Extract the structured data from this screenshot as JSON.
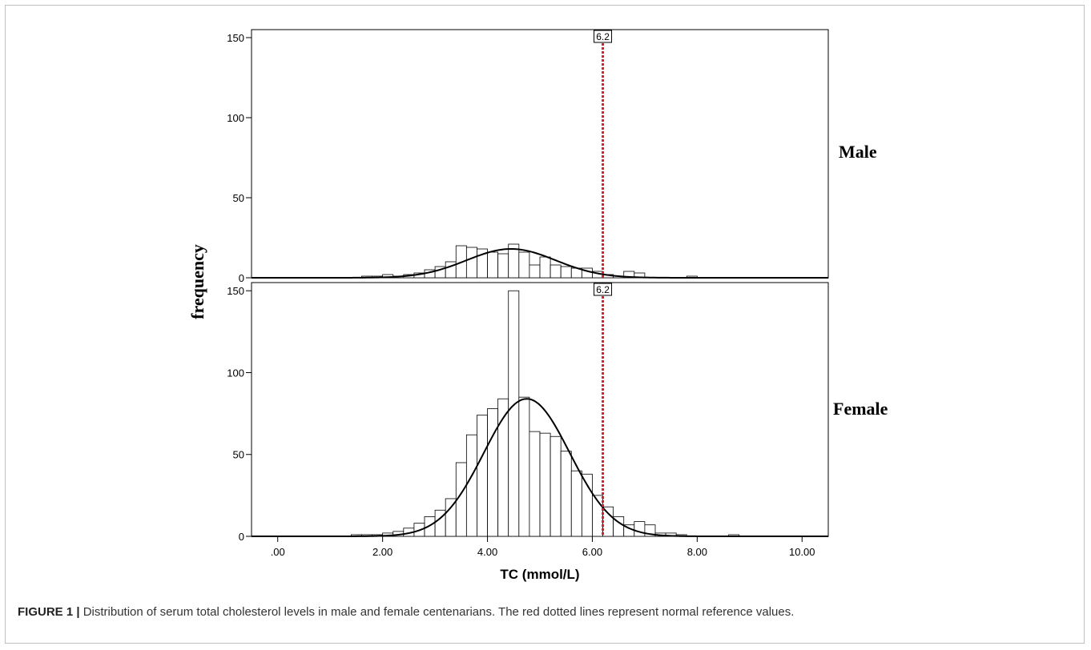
{
  "chart_data": {
    "type": "bar",
    "subtype": "histogram-panels",
    "xlabel": "TC (mmol/L)",
    "ylabel": "frequency",
    "x_ticks": [
      ".00",
      "2.00",
      "4.00",
      "6.00",
      "8.00",
      "10.00"
    ],
    "xlim": [
      -0.5,
      10.5
    ],
    "ylim": [
      0,
      155
    ],
    "y_ticks": [
      "0",
      "50",
      "100",
      "150"
    ],
    "bin_width": 0.2,
    "reference_line": {
      "x": 6.2,
      "label": "6.2",
      "color": "#d0202a",
      "style": "dotted"
    },
    "panels": [
      {
        "name": "Male",
        "bins": [
          {
            "x": 1.6,
            "v": 1
          },
          {
            "x": 1.8,
            "v": 1
          },
          {
            "x": 2.0,
            "v": 2
          },
          {
            "x": 2.2,
            "v": 1
          },
          {
            "x": 2.4,
            "v": 2
          },
          {
            "x": 2.6,
            "v": 3
          },
          {
            "x": 2.8,
            "v": 5
          },
          {
            "x": 3.0,
            "v": 7
          },
          {
            "x": 3.2,
            "v": 10
          },
          {
            "x": 3.4,
            "v": 20
          },
          {
            "x": 3.6,
            "v": 19
          },
          {
            "x": 3.8,
            "v": 18
          },
          {
            "x": 4.0,
            "v": 16
          },
          {
            "x": 4.2,
            "v": 15
          },
          {
            "x": 4.4,
            "v": 21
          },
          {
            "x": 4.6,
            "v": 16
          },
          {
            "x": 4.8,
            "v": 8
          },
          {
            "x": 5.0,
            "v": 13
          },
          {
            "x": 5.2,
            "v": 8
          },
          {
            "x": 5.4,
            "v": 7
          },
          {
            "x": 5.6,
            "v": 6
          },
          {
            "x": 5.8,
            "v": 6
          },
          {
            "x": 6.0,
            "v": 4
          },
          {
            "x": 6.2,
            "v": 2
          },
          {
            "x": 6.4,
            "v": 1
          },
          {
            "x": 6.6,
            "v": 4
          },
          {
            "x": 6.8,
            "v": 3
          },
          {
            "x": 7.8,
            "v": 1
          }
        ],
        "normal_curve": {
          "mean": 4.45,
          "sd": 0.85,
          "peak": 18
        }
      },
      {
        "name": "Female",
        "bins": [
          {
            "x": 1.4,
            "v": 1
          },
          {
            "x": 1.6,
            "v": 1
          },
          {
            "x": 1.8,
            "v": 1
          },
          {
            "x": 2.0,
            "v": 2
          },
          {
            "x": 2.2,
            "v": 3
          },
          {
            "x": 2.4,
            "v": 5
          },
          {
            "x": 2.6,
            "v": 8
          },
          {
            "x": 2.8,
            "v": 12
          },
          {
            "x": 3.0,
            "v": 16
          },
          {
            "x": 3.2,
            "v": 23
          },
          {
            "x": 3.4,
            "v": 45
          },
          {
            "x": 3.6,
            "v": 62
          },
          {
            "x": 3.8,
            "v": 74
          },
          {
            "x": 4.0,
            "v": 78
          },
          {
            "x": 4.2,
            "v": 84
          },
          {
            "x": 4.4,
            "v": 150
          },
          {
            "x": 4.6,
            "v": 85
          },
          {
            "x": 4.8,
            "v": 64
          },
          {
            "x": 5.0,
            "v": 63
          },
          {
            "x": 5.2,
            "v": 61
          },
          {
            "x": 5.4,
            "v": 52
          },
          {
            "x": 5.6,
            "v": 40
          },
          {
            "x": 5.8,
            "v": 38
          },
          {
            "x": 6.0,
            "v": 25
          },
          {
            "x": 6.2,
            "v": 18
          },
          {
            "x": 6.4,
            "v": 12
          },
          {
            "x": 6.6,
            "v": 7
          },
          {
            "x": 6.8,
            "v": 9
          },
          {
            "x": 7.0,
            "v": 7
          },
          {
            "x": 7.2,
            "v": 2
          },
          {
            "x": 7.4,
            "v": 2
          },
          {
            "x": 7.6,
            "v": 1
          },
          {
            "x": 8.6,
            "v": 1
          }
        ],
        "normal_curve": {
          "mean": 4.75,
          "sd": 0.82,
          "peak": 84
        }
      }
    ]
  },
  "caption": {
    "label": "FIGURE 1 |",
    "text": " Distribution of serum total cholesterol levels in male and female centenarians. The red dotted lines represent normal reference values."
  }
}
